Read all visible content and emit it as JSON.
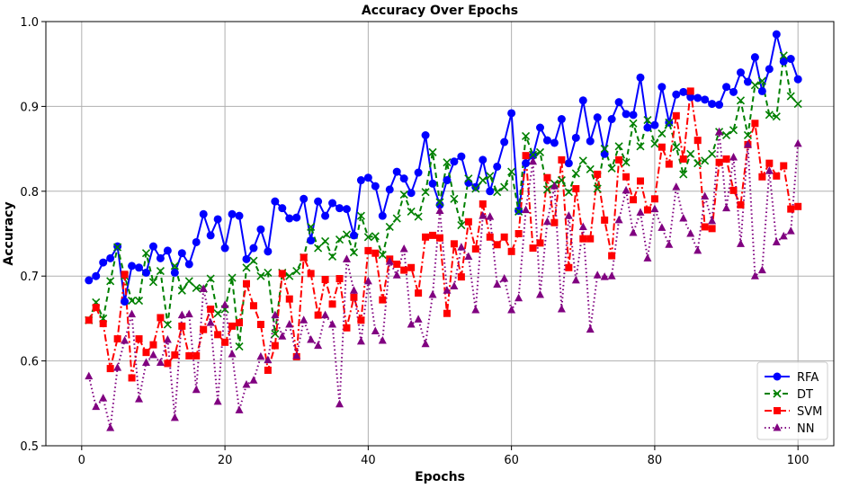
{
  "chart_data": {
    "type": "line",
    "title": "Accuracy Over Epochs",
    "xlabel": "Epochs",
    "ylabel": "Accuracy",
    "xlim": [
      -5,
      105
    ],
    "ylim": [
      0.5,
      1.0
    ],
    "xticks": [
      0,
      20,
      40,
      60,
      80,
      100
    ],
    "yticks": [
      0.5,
      0.6,
      0.7,
      0.8,
      0.9,
      1.0
    ],
    "x_tick_labels": [
      "0",
      "20",
      "40",
      "60",
      "80",
      "100"
    ],
    "y_tick_labels": [
      "0.5",
      "0.6",
      "0.7",
      "0.8",
      "0.9",
      "1.0"
    ],
    "grid": true,
    "legend_position": "bottom-right",
    "series": [
      {
        "name": "RFA",
        "color": "#0000ff",
        "line_style": "solid",
        "marker": "circle",
        "values": [
          0.695,
          0.7,
          0.716,
          0.721,
          0.735,
          0.67,
          0.712,
          0.71,
          0.704,
          0.735,
          0.721,
          0.73,
          0.704,
          0.727,
          0.714,
          0.74,
          0.773,
          0.748,
          0.767,
          0.733,
          0.773,
          0.771,
          0.72,
          0.733,
          0.755,
          0.729,
          0.788,
          0.78,
          0.768,
          0.769,
          0.791,
          0.742,
          0.788,
          0.771,
          0.786,
          0.78,
          0.779,
          0.748,
          0.813,
          0.816,
          0.806,
          0.771,
          0.802,
          0.823,
          0.815,
          0.798,
          0.822,
          0.866,
          0.809,
          0.784,
          0.813,
          0.835,
          0.841,
          0.81,
          0.805,
          0.837,
          0.8,
          0.829,
          0.858,
          0.892,
          0.777,
          0.833,
          0.842,
          0.875,
          0.86,
          0.857,
          0.885,
          0.833,
          0.863,
          0.907,
          0.859,
          0.887,
          0.844,
          0.885,
          0.905,
          0.891,
          0.89,
          0.934,
          0.875,
          0.878,
          0.923,
          0.881,
          0.914,
          0.917,
          0.911,
          0.91,
          0.908,
          0.903,
          0.902,
          0.923,
          0.917,
          0.94,
          0.929,
          0.958,
          0.918,
          0.944,
          0.985,
          0.953,
          0.956,
          0.932
        ]
      },
      {
        "name": "DT",
        "color": "#008000",
        "line_style": "dashed",
        "marker": "x",
        "values": [
          0.648,
          0.669,
          0.65,
          0.694,
          0.734,
          0.7,
          0.671,
          0.671,
          0.727,
          0.693,
          0.706,
          0.643,
          0.712,
          0.683,
          0.694,
          0.686,
          0.685,
          0.697,
          0.656,
          0.661,
          0.698,
          0.617,
          0.71,
          0.718,
          0.7,
          0.704,
          0.632,
          0.704,
          0.7,
          0.706,
          0.722,
          0.758,
          0.733,
          0.741,
          0.723,
          0.743,
          0.749,
          0.728,
          0.771,
          0.746,
          0.747,
          0.725,
          0.758,
          0.768,
          0.796,
          0.776,
          0.77,
          0.799,
          0.846,
          0.787,
          0.834,
          0.791,
          0.76,
          0.815,
          0.803,
          0.813,
          0.818,
          0.799,
          0.805,
          0.823,
          0.776,
          0.865,
          0.843,
          0.846,
          0.802,
          0.809,
          0.813,
          0.799,
          0.821,
          0.836,
          0.826,
          0.803,
          0.85,
          0.827,
          0.853,
          0.834,
          0.88,
          0.853,
          0.884,
          0.856,
          0.868,
          0.881,
          0.852,
          0.82,
          0.844,
          0.833,
          0.836,
          0.844,
          0.87,
          0.866,
          0.872,
          0.907,
          0.866,
          0.925,
          0.93,
          0.89,
          0.888,
          0.96,
          0.912,
          0.903
        ]
      },
      {
        "name": "SVM",
        "color": "#ff0000",
        "line_style": "dashdot",
        "marker": "square",
        "values": [
          0.648,
          0.663,
          0.644,
          0.591,
          0.626,
          0.702,
          0.58,
          0.626,
          0.61,
          0.619,
          0.651,
          0.597,
          0.607,
          0.641,
          0.606,
          0.606,
          0.637,
          0.661,
          0.631,
          0.622,
          0.641,
          0.645,
          0.691,
          0.665,
          0.643,
          0.589,
          0.618,
          0.703,
          0.673,
          0.605,
          0.722,
          0.703,
          0.654,
          0.696,
          0.667,
          0.697,
          0.639,
          0.675,
          0.648,
          0.73,
          0.727,
          0.672,
          0.72,
          0.714,
          0.707,
          0.71,
          0.68,
          0.746,
          0.748,
          0.745,
          0.656,
          0.738,
          0.699,
          0.764,
          0.732,
          0.785,
          0.746,
          0.737,
          0.746,
          0.729,
          0.75,
          0.842,
          0.733,
          0.739,
          0.816,
          0.763,
          0.837,
          0.71,
          0.803,
          0.744,
          0.744,
          0.82,
          0.766,
          0.724,
          0.837,
          0.817,
          0.79,
          0.812,
          0.778,
          0.791,
          0.852,
          0.832,
          0.889,
          0.838,
          0.918,
          0.86,
          0.758,
          0.756,
          0.834,
          0.838,
          0.801,
          0.784,
          0.855,
          0.88,
          0.817,
          0.833,
          0.818,
          0.83,
          0.779,
          0.782
        ]
      },
      {
        "name": "NN",
        "color": "#800080",
        "line_style": "dotted",
        "marker": "triangle",
        "values": [
          0.582,
          0.546,
          0.556,
          0.521,
          0.592,
          0.624,
          0.655,
          0.555,
          0.598,
          0.607,
          0.598,
          0.625,
          0.533,
          0.654,
          0.655,
          0.566,
          0.685,
          0.645,
          0.552,
          0.666,
          0.608,
          0.542,
          0.572,
          0.577,
          0.605,
          0.601,
          0.654,
          0.629,
          0.643,
          0.606,
          0.648,
          0.625,
          0.618,
          0.654,
          0.643,
          0.549,
          0.72,
          0.683,
          0.623,
          0.694,
          0.635,
          0.624,
          0.717,
          0.701,
          0.732,
          0.643,
          0.649,
          0.62,
          0.678,
          0.777,
          0.683,
          0.688,
          0.734,
          0.723,
          0.66,
          0.771,
          0.77,
          0.69,
          0.697,
          0.66,
          0.674,
          0.778,
          0.835,
          0.678,
          0.764,
          0.806,
          0.661,
          0.771,
          0.695,
          0.758,
          0.637,
          0.701,
          0.699,
          0.7,
          0.766,
          0.801,
          0.751,
          0.775,
          0.721,
          0.779,
          0.757,
          0.737,
          0.805,
          0.768,
          0.75,
          0.73,
          0.794,
          0.765,
          0.87,
          0.78,
          0.84,
          0.738,
          0.855,
          0.7,
          0.707,
          0.824,
          0.74,
          0.747,
          0.753,
          0.856
        ]
      }
    ]
  }
}
